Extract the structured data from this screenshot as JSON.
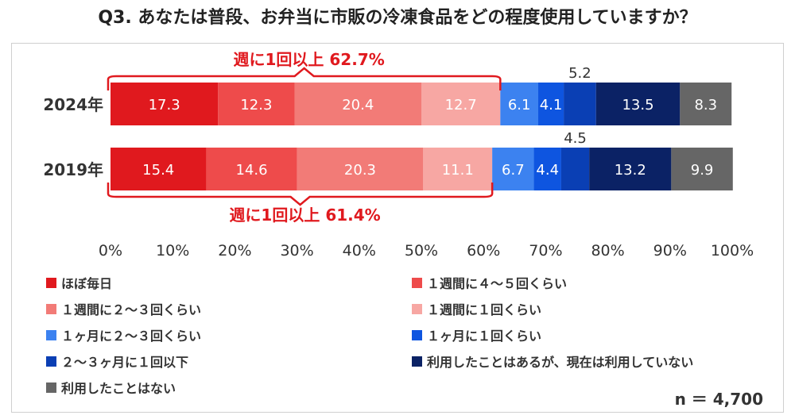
{
  "title": "Q3. あなたは普段、お弁当に市販の冷凍食品をどの程度使用していますか？",
  "sample_note": "n ＝ 4,700",
  "chart_data": {
    "type": "bar",
    "orientation": "horizontal",
    "stacked": true,
    "percent": true,
    "categories": [
      "2024年",
      "2019年"
    ],
    "xlim": [
      0,
      100
    ],
    "x_ticks": [
      "0%",
      "10%",
      "20%",
      "30%",
      "40%",
      "50%",
      "60%",
      "70%",
      "80%",
      "90%",
      "100%"
    ],
    "legend_position": "bottom",
    "series": [
      {
        "name": "ほぼ毎日",
        "color": "#e0191e",
        "values": [
          17.3,
          15.4
        ]
      },
      {
        "name": "１週間に４～５回くらい",
        "color": "#ee4b4b",
        "values": [
          12.3,
          14.6
        ]
      },
      {
        "name": "１週間に２～３回くらい",
        "color": "#f27b77",
        "values": [
          20.4,
          20.3
        ]
      },
      {
        "name": "１週間に１回くらい",
        "color": "#f7a7a3",
        "values": [
          12.7,
          11.1
        ]
      },
      {
        "name": "１ヶ月に２～３回くらい",
        "color": "#3c82f0",
        "values": [
          6.1,
          6.7
        ]
      },
      {
        "name": "１ヶ月に１回くらい",
        "color": "#0e55e0",
        "values": [
          4.1,
          4.4
        ]
      },
      {
        "name": "２～３ヶ月に１回以下",
        "color": "#0a3fb4",
        "values": [
          5.2,
          4.5
        ]
      },
      {
        "name": "利用したことはあるが、現在は利用していない",
        "color": "#0b2265",
        "values": [
          13.5,
          13.2
        ]
      },
      {
        "name": "利用したことはない",
        "color": "#666666",
        "values": [
          8.3,
          9.9
        ]
      }
    ],
    "value_labels": [
      [
        "17.3",
        "12.3",
        "20.4",
        "12.7",
        "6.1",
        "4.1",
        "5.2",
        "13.5",
        "8.3"
      ],
      [
        "15.4",
        "14.6",
        "20.3",
        "11.1",
        "6.7",
        "4.4",
        "4.5",
        "13.2",
        "9.9"
      ]
    ],
    "annotations": [
      {
        "text": "週に1回以上 62.7%",
        "category": "2024年",
        "value": 62.7,
        "color": "#e0191e"
      },
      {
        "text": "週に1回以上 61.4%",
        "category": "2019年",
        "value": 61.4,
        "color": "#e0191e"
      }
    ]
  }
}
